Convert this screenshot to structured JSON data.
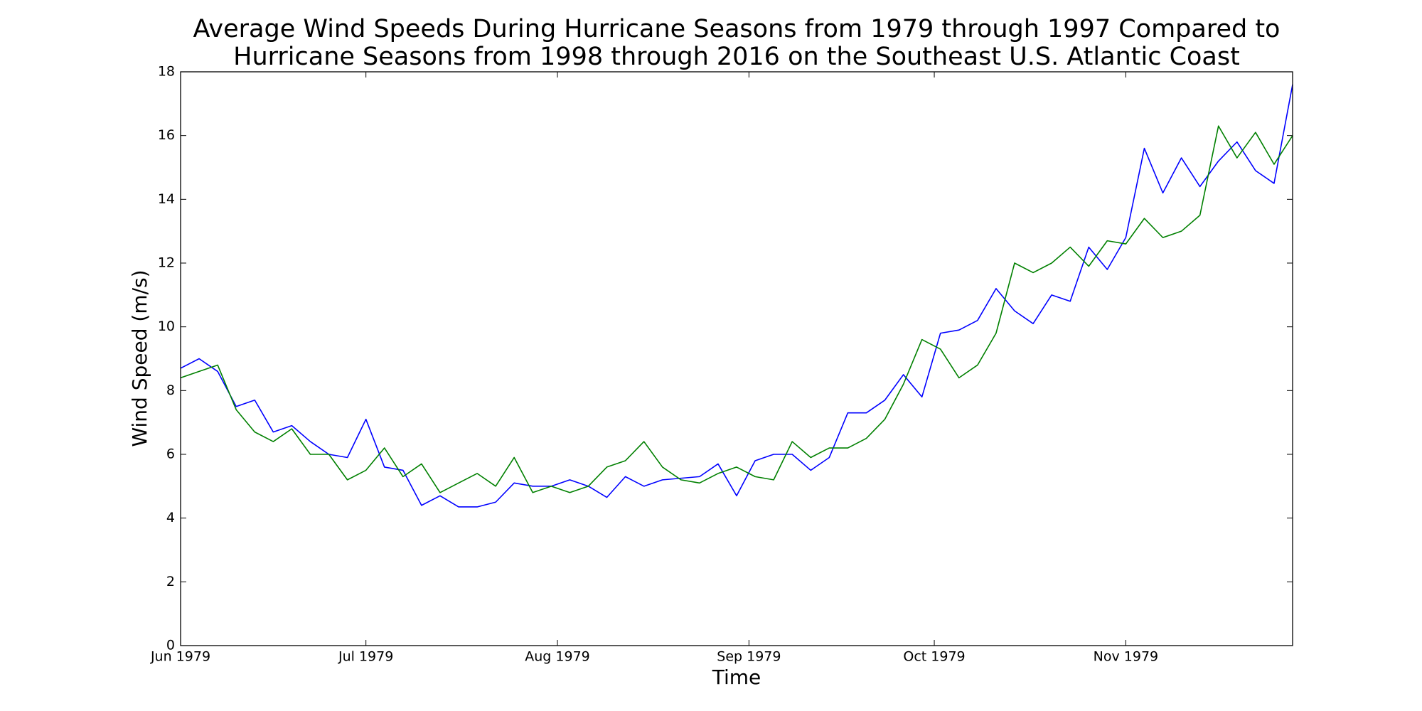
{
  "chart_data": {
    "type": "line",
    "title": [
      "Average Wind Speeds During Hurricane Seasons from 1979 through 1997 Compared to",
      "Hurricane Seasons from 1998 through 2016 on the Southeast U.S. Atlantic Coast"
    ],
    "x_label": "Time",
    "y_label": "Wind Speed (m/s)",
    "x": [
      0,
      3,
      6,
      9,
      12,
      15,
      18,
      21,
      24,
      27,
      30,
      33,
      36,
      39,
      42,
      45,
      48,
      51,
      54,
      57,
      60,
      63,
      66,
      69,
      72,
      75,
      78,
      81,
      84,
      87,
      90,
      93,
      96,
      99,
      102,
      105,
      108,
      111,
      114,
      117,
      120,
      123,
      126,
      129,
      132,
      135,
      138,
      141,
      144,
      147,
      150,
      153,
      156,
      159,
      162,
      165,
      168,
      171,
      174,
      177,
      180
    ],
    "xlim": [
      0,
      180
    ],
    "xticks": [
      {
        "value": 0,
        "label": "Jun 1979"
      },
      {
        "value": 30,
        "label": "Jul 1979"
      },
      {
        "value": 61,
        "label": "Aug 1979"
      },
      {
        "value": 92,
        "label": "Sep 1979"
      },
      {
        "value": 122,
        "label": "Oct 1979"
      },
      {
        "value": 153,
        "label": "Nov 1979"
      }
    ],
    "ylim": [
      0,
      18
    ],
    "yticks": [
      0,
      2,
      4,
      6,
      8,
      10,
      12,
      14,
      16,
      18
    ],
    "series": [
      {
        "color": "#0000ff",
        "values": [
          8.7,
          9.0,
          8.6,
          7.5,
          7.7,
          6.7,
          6.9,
          6.4,
          6.0,
          5.9,
          7.1,
          5.6,
          5.5,
          4.4,
          4.7,
          4.35,
          4.35,
          4.5,
          5.1,
          5.0,
          5.0,
          5.2,
          5.0,
          4.65,
          5.3,
          5.0,
          5.2,
          5.25,
          5.3,
          5.7,
          4.7,
          5.8,
          6.0,
          6.0,
          5.5,
          5.9,
          7.3,
          7.3,
          7.7,
          8.5,
          7.8,
          9.8,
          9.9,
          10.2,
          11.2,
          10.5,
          10.1,
          11.0,
          10.8,
          12.5,
          11.8,
          12.8,
          15.6,
          14.2,
          15.3,
          14.4,
          15.2,
          15.8,
          14.9,
          14.5,
          17.6
        ]
      },
      {
        "color": "#008000",
        "values": [
          8.4,
          8.6,
          8.8,
          7.4,
          6.7,
          6.4,
          6.8,
          6.0,
          6.0,
          5.2,
          5.5,
          6.2,
          5.3,
          5.7,
          4.8,
          5.1,
          5.4,
          5.0,
          5.9,
          4.8,
          5.0,
          4.8,
          5.0,
          5.6,
          5.8,
          6.4,
          5.6,
          5.2,
          5.1,
          5.4,
          5.6,
          5.3,
          5.2,
          6.4,
          5.9,
          6.2,
          6.2,
          6.5,
          7.1,
          8.2,
          9.6,
          9.3,
          8.4,
          8.8,
          9.8,
          12.0,
          11.7,
          12.0,
          12.5,
          11.9,
          12.7,
          12.6,
          13.4,
          12.8,
          13.0,
          13.5,
          16.3,
          15.3,
          16.1,
          15.1,
          16.0
        ]
      }
    ]
  }
}
